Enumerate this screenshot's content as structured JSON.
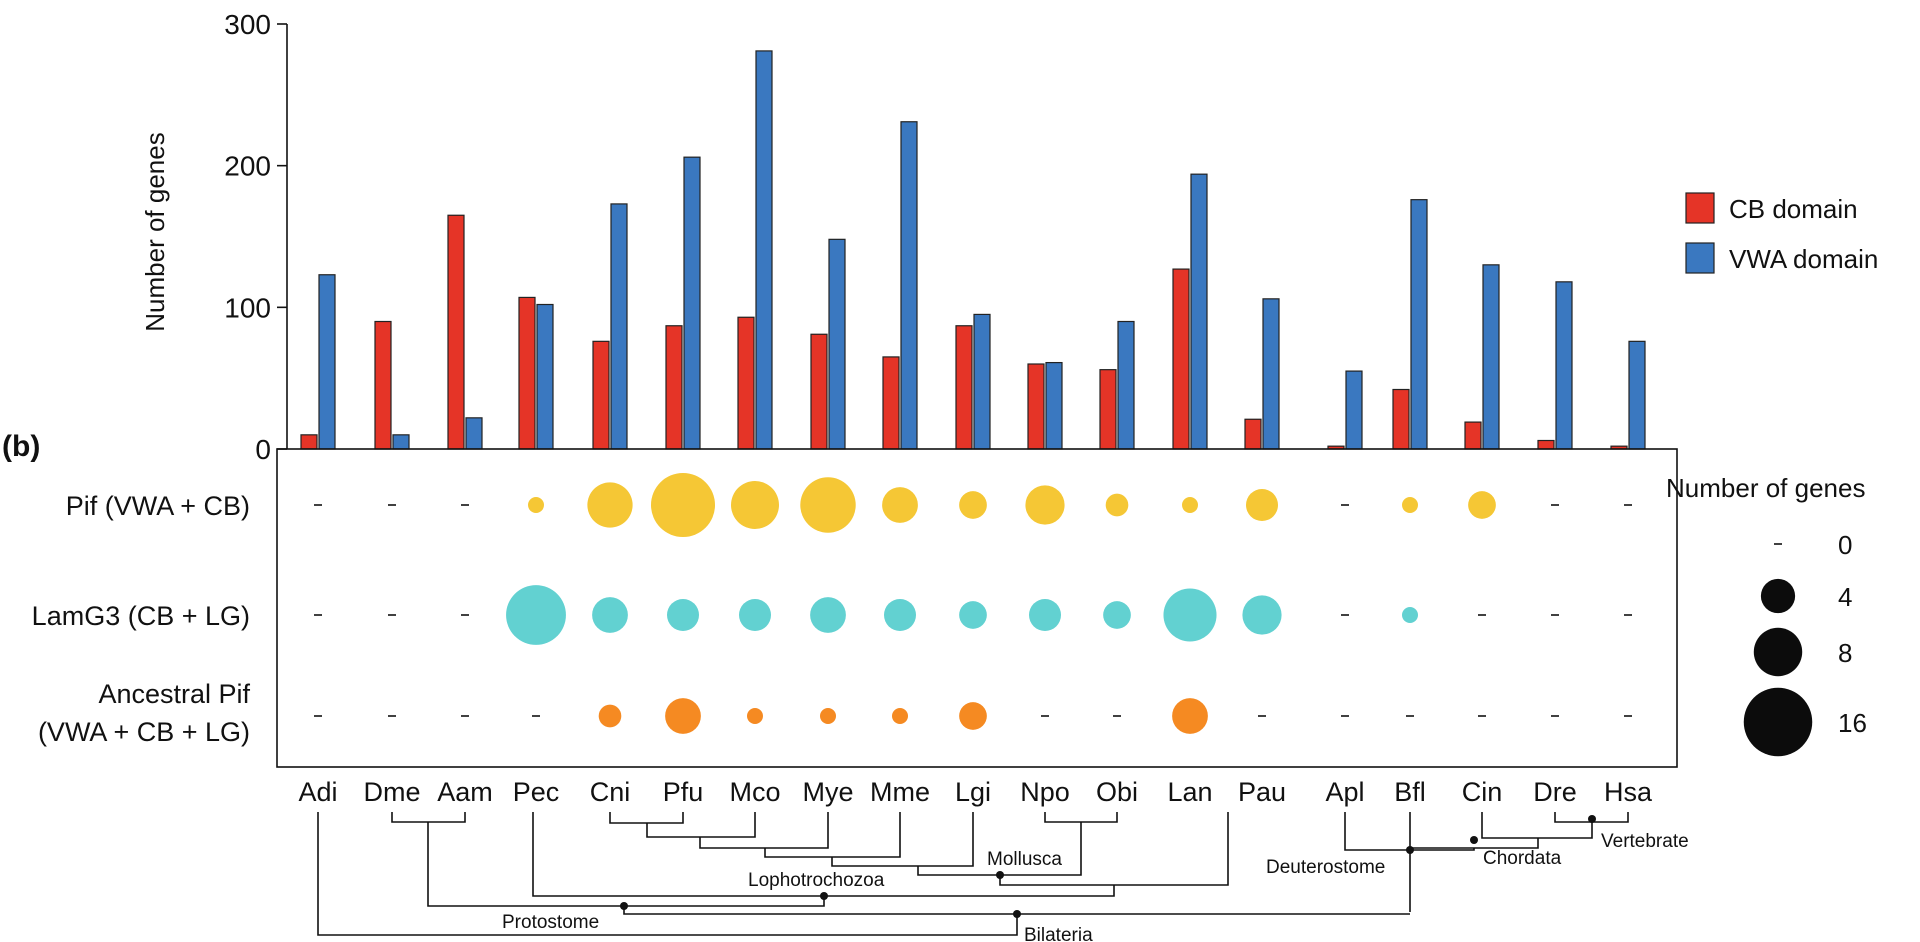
{
  "panel_b_label": "(b)",
  "chart_data": [
    {
      "type": "bar",
      "panel": "a",
      "title": "",
      "xlabel": "",
      "ylabel": "Number of genes",
      "ylim": [
        0,
        300
      ],
      "yticks": [
        0,
        100,
        200,
        300
      ],
      "categories": [
        "Adi",
        "Dme",
        "Aam",
        "Pec",
        "Cni",
        "Pfu",
        "Mco",
        "Mye",
        "Mme",
        "Lgi",
        "Npo",
        "Obi",
        "Lan",
        "Pau",
        "Apl",
        "Bfl",
        "Cin",
        "Dre",
        "Hsa"
      ],
      "series": [
        {
          "name": "CB domain",
          "color": "#e53427",
          "values": [
            10,
            90,
            165,
            107,
            76,
            87,
            93,
            81,
            65,
            87,
            60,
            56,
            127,
            21,
            2,
            42,
            19,
            6,
            2
          ]
        },
        {
          "name": "VWA domain",
          "color": "#3a78c0",
          "values": [
            123,
            10,
            22,
            102,
            173,
            206,
            281,
            148,
            231,
            95,
            61,
            90,
            194,
            106,
            55,
            176,
            130,
            118,
            76
          ]
        }
      ],
      "legend": "right"
    },
    {
      "type": "bubble",
      "panel": "b",
      "title": "",
      "categories": [
        "Adi",
        "Dme",
        "Aam",
        "Pec",
        "Cni",
        "Pfu",
        "Mco",
        "Mye",
        "Mme",
        "Lgi",
        "Npo",
        "Obi",
        "Lan",
        "Pau",
        "Apl",
        "Bfl",
        "Cin",
        "Dre",
        "Hsa"
      ],
      "rows": [
        {
          "label_lines": [
            "Pif (VWA + CB)"
          ],
          "color": "#f5c735",
          "values": [
            0,
            0,
            0,
            1,
            8,
            16,
            9,
            12,
            5,
            3,
            6,
            2,
            1,
            4,
            0,
            1,
            3,
            0,
            0
          ]
        },
        {
          "label_lines": [
            "LamG3 (CB + LG)"
          ],
          "color": "#62d1d1",
          "values": [
            0,
            0,
            0,
            14,
            5,
            4,
            4,
            5,
            4,
            3,
            4,
            3,
            11,
            6,
            0,
            1,
            0,
            0,
            0
          ]
        },
        {
          "label_lines": [
            "Ancestral Pif",
            "(VWA + CB + LG)"
          ],
          "color": "#f58a22",
          "values": [
            0,
            0,
            0,
            0,
            2,
            5,
            1,
            1,
            1,
            3,
            0,
            0,
            5,
            0,
            0,
            0,
            0,
            0,
            0
          ]
        }
      ],
      "size_legend": {
        "title": "Number of genes",
        "values": [
          0,
          4,
          8,
          16
        ]
      }
    }
  ],
  "tree": {
    "clade_labels": [
      "Mollusca",
      "Lophotrochozoa",
      "Protostome",
      "Bilateria",
      "Deuterostome",
      "Chordata",
      "Vertebrate"
    ]
  }
}
